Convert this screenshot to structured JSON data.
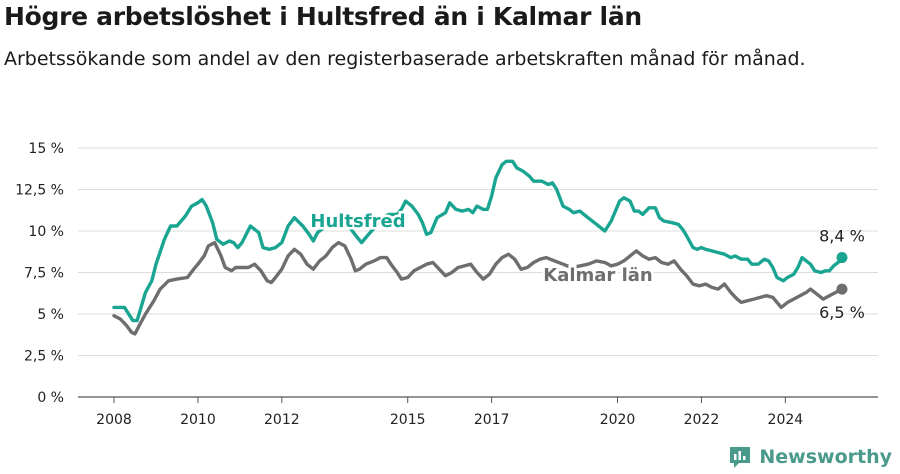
{
  "header": {
    "title": "Högre arbetslöshet i Hultsfred än i Kalmar län",
    "subtitle": "Arbetssökande som andel av den registerbaserade arbetskraften månad för månad."
  },
  "branding": {
    "name": "Newsworthy",
    "logo_icon": "bar-chart-logo-icon",
    "color": "#4a9a8c"
  },
  "chart_data": {
    "type": "line",
    "ylim": [
      0,
      15
    ],
    "y_ticks": [
      {
        "value": 0,
        "label": "0 %"
      },
      {
        "value": 2.5,
        "label": "2,5 %"
      },
      {
        "value": 5,
        "label": "5 %"
      },
      {
        "value": 7.5,
        "label": "7,5 %"
      },
      {
        "value": 10,
        "label": "10 %"
      },
      {
        "value": 12.5,
        "label": "12,5 %"
      },
      {
        "value": 15,
        "label": "15 %"
      }
    ],
    "x_range": [
      2008,
      2025.6
    ],
    "x_ticks": [
      {
        "value": 2008,
        "label": "2008"
      },
      {
        "value": 2010,
        "label": "2010"
      },
      {
        "value": 2012,
        "label": "2012"
      },
      {
        "value": 2015,
        "label": "2015"
      },
      {
        "value": 2017,
        "label": "2017"
      },
      {
        "value": 2020,
        "label": "2020"
      },
      {
        "value": 2022,
        "label": "2022"
      },
      {
        "value": 2024,
        "label": "2024"
      }
    ],
    "grid": true,
    "series": [
      {
        "name": "Hultsfred",
        "color": "#19a591",
        "end_label": "8,4 %",
        "points": [
          [
            2008.0,
            5.4
          ],
          [
            2008.25,
            5.4
          ],
          [
            2008.45,
            4.6
          ],
          [
            2008.55,
            4.6
          ],
          [
            2008.75,
            6.3
          ],
          [
            2008.9,
            7.0
          ],
          [
            2009.0,
            8.0
          ],
          [
            2009.2,
            9.5
          ],
          [
            2009.35,
            10.3
          ],
          [
            2009.5,
            10.3
          ],
          [
            2009.7,
            10.9
          ],
          [
            2009.85,
            11.5
          ],
          [
            2010.0,
            11.7
          ],
          [
            2010.1,
            11.9
          ],
          [
            2010.2,
            11.5
          ],
          [
            2010.35,
            10.5
          ],
          [
            2010.45,
            9.5
          ],
          [
            2010.6,
            9.2
          ],
          [
            2010.75,
            9.4
          ],
          [
            2010.85,
            9.3
          ],
          [
            2010.95,
            9.0
          ],
          [
            2011.05,
            9.3
          ],
          [
            2011.25,
            10.3
          ],
          [
            2011.45,
            9.9
          ],
          [
            2011.55,
            9.0
          ],
          [
            2011.7,
            8.9
          ],
          [
            2011.85,
            9.0
          ],
          [
            2012.0,
            9.3
          ],
          [
            2012.15,
            10.3
          ],
          [
            2012.3,
            10.8
          ],
          [
            2012.5,
            10.3
          ],
          [
            2012.65,
            9.8
          ],
          [
            2012.75,
            9.4
          ],
          [
            2012.85,
            9.9
          ],
          [
            2013.0,
            10.2
          ],
          [
            2013.2,
            10.8
          ],
          [
            2013.35,
            10.9
          ],
          [
            2013.5,
            10.6
          ],
          [
            2013.65,
            10.1
          ],
          [
            2013.8,
            9.6
          ],
          [
            2013.9,
            9.3
          ],
          [
            2014.0,
            9.6
          ],
          [
            2014.1,
            9.9
          ],
          [
            2014.25,
            10.3
          ],
          [
            2014.4,
            10.8
          ],
          [
            2014.55,
            11.0
          ],
          [
            2014.75,
            11.0
          ],
          [
            2014.85,
            11.3
          ],
          [
            2014.95,
            11.8
          ],
          [
            2015.1,
            11.5
          ],
          [
            2015.25,
            11.0
          ],
          [
            2015.35,
            10.5
          ],
          [
            2015.45,
            9.8
          ],
          [
            2015.55,
            9.9
          ],
          [
            2015.7,
            10.8
          ],
          [
            2015.9,
            11.1
          ],
          [
            2016.0,
            11.7
          ],
          [
            2016.15,
            11.3
          ],
          [
            2016.3,
            11.2
          ],
          [
            2016.45,
            11.3
          ],
          [
            2016.55,
            11.1
          ],
          [
            2016.65,
            11.5
          ],
          [
            2016.8,
            11.3
          ],
          [
            2016.9,
            11.3
          ],
          [
            2017.0,
            12.1
          ],
          [
            2017.1,
            13.2
          ],
          [
            2017.25,
            14.0
          ],
          [
            2017.35,
            14.2
          ],
          [
            2017.5,
            14.2
          ],
          [
            2017.6,
            13.8
          ],
          [
            2017.75,
            13.6
          ],
          [
            2017.9,
            13.3
          ],
          [
            2018.0,
            13.0
          ],
          [
            2018.2,
            13.0
          ],
          [
            2018.35,
            12.8
          ],
          [
            2018.45,
            12.9
          ],
          [
            2018.55,
            12.5
          ],
          [
            2018.7,
            11.5
          ],
          [
            2018.85,
            11.3
          ],
          [
            2018.95,
            11.1
          ],
          [
            2019.1,
            11.2
          ],
          [
            2019.2,
            11.0
          ],
          [
            2019.35,
            10.7
          ],
          [
            2019.45,
            10.5
          ],
          [
            2019.55,
            10.3
          ],
          [
            2019.7,
            10.0
          ],
          [
            2019.85,
            10.6
          ],
          [
            2019.95,
            11.2
          ],
          [
            2020.05,
            11.8
          ],
          [
            2020.15,
            12.0
          ],
          [
            2020.3,
            11.8
          ],
          [
            2020.4,
            11.2
          ],
          [
            2020.5,
            11.2
          ],
          [
            2020.6,
            11.0
          ],
          [
            2020.75,
            11.4
          ],
          [
            2020.9,
            11.4
          ],
          [
            2021.0,
            10.8
          ],
          [
            2021.1,
            10.6
          ],
          [
            2021.3,
            10.5
          ],
          [
            2021.45,
            10.4
          ],
          [
            2021.55,
            10.1
          ],
          [
            2021.65,
            9.7
          ],
          [
            2021.8,
            9.0
          ],
          [
            2021.9,
            8.9
          ],
          [
            2022.0,
            9.0
          ],
          [
            2022.1,
            8.9
          ],
          [
            2022.25,
            8.8
          ],
          [
            2022.4,
            8.7
          ],
          [
            2022.55,
            8.6
          ],
          [
            2022.7,
            8.4
          ],
          [
            2022.8,
            8.5
          ],
          [
            2022.95,
            8.3
          ],
          [
            2023.1,
            8.3
          ],
          [
            2023.2,
            8.0
          ],
          [
            2023.35,
            8.0
          ],
          [
            2023.5,
            8.3
          ],
          [
            2023.6,
            8.2
          ],
          [
            2023.7,
            7.8
          ],
          [
            2023.8,
            7.2
          ],
          [
            2023.95,
            7.0
          ],
          [
            2024.05,
            7.2
          ],
          [
            2024.2,
            7.4
          ],
          [
            2024.3,
            7.8
          ],
          [
            2024.4,
            8.4
          ],
          [
            2024.5,
            8.2
          ],
          [
            2024.6,
            8.0
          ],
          [
            2024.7,
            7.6
          ],
          [
            2024.85,
            7.5
          ],
          [
            2024.95,
            7.6
          ],
          [
            2025.05,
            7.6
          ],
          [
            2025.15,
            7.9
          ],
          [
            2025.3,
            8.2
          ],
          [
            2025.35,
            8.4
          ]
        ]
      },
      {
        "name": "Kalmar län",
        "color": "#6e6e70",
        "end_label": "6,5 %",
        "points": [
          [
            2008.0,
            4.9
          ],
          [
            2008.15,
            4.7
          ],
          [
            2008.3,
            4.3
          ],
          [
            2008.42,
            3.9
          ],
          [
            2008.5,
            3.8
          ],
          [
            2008.6,
            4.3
          ],
          [
            2008.75,
            5.0
          ],
          [
            2008.95,
            5.8
          ],
          [
            2009.1,
            6.5
          ],
          [
            2009.3,
            7.0
          ],
          [
            2009.5,
            7.1
          ],
          [
            2009.75,
            7.2
          ],
          [
            2009.9,
            7.7
          ],
          [
            2010.0,
            8.0
          ],
          [
            2010.15,
            8.5
          ],
          [
            2010.25,
            9.1
          ],
          [
            2010.4,
            9.3
          ],
          [
            2010.55,
            8.5
          ],
          [
            2010.65,
            7.8
          ],
          [
            2010.8,
            7.6
          ],
          [
            2010.9,
            7.8
          ],
          [
            2011.05,
            7.8
          ],
          [
            2011.2,
            7.8
          ],
          [
            2011.35,
            8.0
          ],
          [
            2011.5,
            7.6
          ],
          [
            2011.65,
            7.0
          ],
          [
            2011.75,
            6.9
          ],
          [
            2011.85,
            7.2
          ],
          [
            2012.0,
            7.7
          ],
          [
            2012.15,
            8.5
          ],
          [
            2012.3,
            8.9
          ],
          [
            2012.45,
            8.6
          ],
          [
            2012.6,
            8.0
          ],
          [
            2012.75,
            7.7
          ],
          [
            2012.9,
            8.2
          ],
          [
            2013.05,
            8.5
          ],
          [
            2013.2,
            9.0
          ],
          [
            2013.35,
            9.3
          ],
          [
            2013.5,
            9.1
          ],
          [
            2013.65,
            8.3
          ],
          [
            2013.75,
            7.6
          ],
          [
            2013.85,
            7.7
          ],
          [
            2014.0,
            8.0
          ],
          [
            2014.2,
            8.2
          ],
          [
            2014.35,
            8.4
          ],
          [
            2014.5,
            8.4
          ],
          [
            2014.6,
            8.0
          ],
          [
            2014.75,
            7.5
          ],
          [
            2014.85,
            7.1
          ],
          [
            2015.0,
            7.2
          ],
          [
            2015.15,
            7.6
          ],
          [
            2015.3,
            7.8
          ],
          [
            2015.45,
            8.0
          ],
          [
            2015.6,
            8.1
          ],
          [
            2015.75,
            7.7
          ],
          [
            2015.9,
            7.3
          ],
          [
            2016.05,
            7.5
          ],
          [
            2016.2,
            7.8
          ],
          [
            2016.35,
            7.9
          ],
          [
            2016.5,
            8.0
          ],
          [
            2016.65,
            7.5
          ],
          [
            2016.8,
            7.1
          ],
          [
            2016.95,
            7.4
          ],
          [
            2017.1,
            8.0
          ],
          [
            2017.25,
            8.4
          ],
          [
            2017.4,
            8.6
          ],
          [
            2017.55,
            8.3
          ],
          [
            2017.7,
            7.7
          ],
          [
            2017.85,
            7.8
          ],
          [
            2018.0,
            8.1
          ],
          [
            2018.15,
            8.3
          ],
          [
            2018.3,
            8.4
          ],
          [
            2018.5,
            8.2
          ],
          [
            2018.7,
            8.0
          ],
          [
            2018.9,
            7.8
          ],
          [
            2019.1,
            7.9
          ],
          [
            2019.3,
            8.0
          ],
          [
            2019.5,
            8.2
          ],
          [
            2019.7,
            8.1
          ],
          [
            2019.85,
            7.9
          ],
          [
            2020.0,
            8.0
          ],
          [
            2020.15,
            8.2
          ],
          [
            2020.3,
            8.5
          ],
          [
            2020.45,
            8.8
          ],
          [
            2020.6,
            8.5
          ],
          [
            2020.75,
            8.3
          ],
          [
            2020.9,
            8.4
          ],
          [
            2021.05,
            8.1
          ],
          [
            2021.2,
            8.0
          ],
          [
            2021.35,
            8.2
          ],
          [
            2021.5,
            7.7
          ],
          [
            2021.65,
            7.3
          ],
          [
            2021.8,
            6.8
          ],
          [
            2021.95,
            6.7
          ],
          [
            2022.1,
            6.8
          ],
          [
            2022.25,
            6.6
          ],
          [
            2022.4,
            6.5
          ],
          [
            2022.55,
            6.8
          ],
          [
            2022.7,
            6.3
          ],
          [
            2022.85,
            5.9
          ],
          [
            2022.95,
            5.7
          ],
          [
            2023.1,
            5.8
          ],
          [
            2023.25,
            5.9
          ],
          [
            2023.4,
            6.0
          ],
          [
            2023.55,
            6.1
          ],
          [
            2023.7,
            6.0
          ],
          [
            2023.8,
            5.7
          ],
          [
            2023.9,
            5.4
          ],
          [
            2024.05,
            5.7
          ],
          [
            2024.2,
            5.9
          ],
          [
            2024.35,
            6.1
          ],
          [
            2024.5,
            6.3
          ],
          [
            2024.6,
            6.5
          ],
          [
            2024.7,
            6.3
          ],
          [
            2024.8,
            6.1
          ],
          [
            2024.9,
            5.9
          ],
          [
            2025.05,
            6.1
          ],
          [
            2025.2,
            6.3
          ],
          [
            2025.35,
            6.5
          ]
        ]
      }
    ]
  }
}
